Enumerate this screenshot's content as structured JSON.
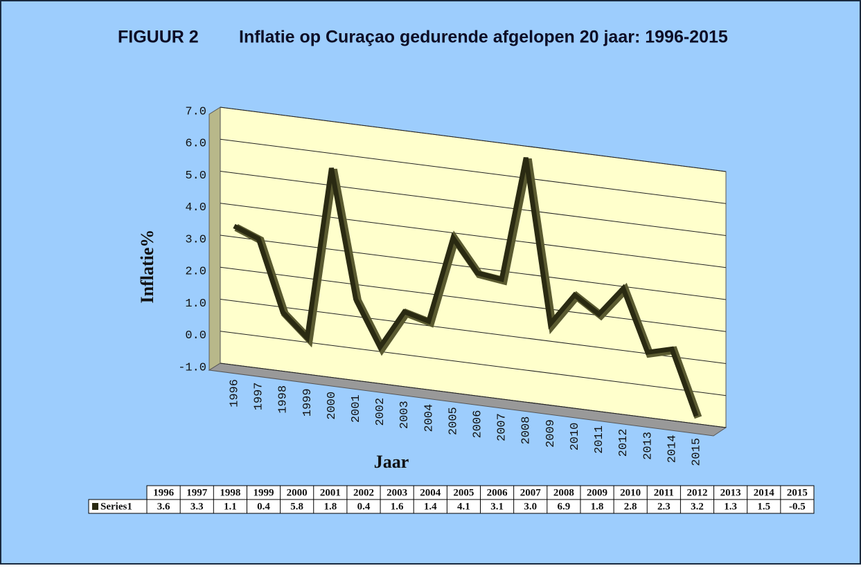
{
  "chart_data": {
    "type": "line",
    "figure_label": "FIGUUR 2",
    "title": "Inflatie op Curaçao gedurende afgelopen 20 jaar: 1996-2015",
    "y_label": "Inflatie%",
    "x_label": "Jaar",
    "categories": [
      "1996",
      "1997",
      "1998",
      "1999",
      "2000",
      "2001",
      "2002",
      "2003",
      "2004",
      "2005",
      "2006",
      "2007",
      "2008",
      "2009",
      "2010",
      "2011",
      "2012",
      "2013",
      "2014",
      "2015"
    ],
    "series": [
      {
        "name": "Series1",
        "color": "#2a2a12",
        "values": [
          3.6,
          3.3,
          1.1,
          0.4,
          5.8,
          1.8,
          0.4,
          1.6,
          1.4,
          4.1,
          3.1,
          3.0,
          6.9,
          1.8,
          2.8,
          2.3,
          3.2,
          1.3,
          1.5,
          -0.5
        ],
        "value_labels": [
          "3.6",
          "3.3",
          "1.1",
          "0.4",
          "5.8",
          "1.8",
          "0.4",
          "1.6",
          "1.4",
          "4.1",
          "3.1",
          "3.0",
          "6.9",
          "1.8",
          "2.8",
          "2.3",
          "3.2",
          "1.3",
          "1.5",
          "-0.5"
        ]
      }
    ],
    "ylim": [
      -1,
      7
    ],
    "yticks": [
      {
        "value": -1,
        "label": "-1.0"
      },
      {
        "value": 0,
        "label": "0.0"
      },
      {
        "value": 1,
        "label": "1.0"
      },
      {
        "value": 2,
        "label": "2.0"
      },
      {
        "value": 3,
        "label": "3.0"
      },
      {
        "value": 4,
        "label": "4.0"
      },
      {
        "value": 5,
        "label": "5.0"
      },
      {
        "value": 6,
        "label": "6.0"
      },
      {
        "value": 7,
        "label": "7.0"
      }
    ],
    "grid": true
  }
}
